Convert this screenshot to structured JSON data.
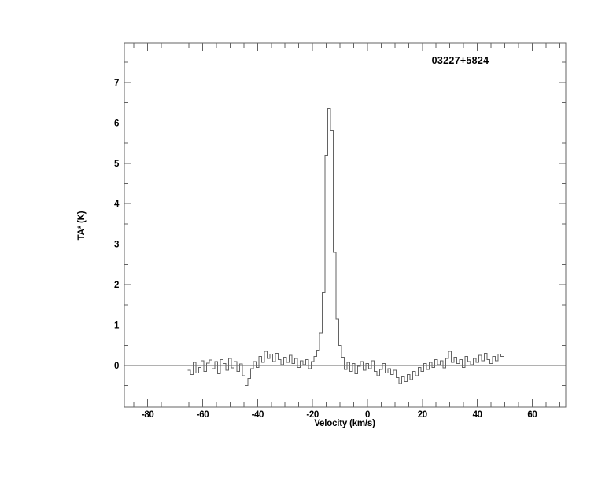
{
  "window": {
    "background": "#ffffff"
  },
  "chart_data": {
    "type": "line",
    "style": "histogram_step",
    "title": "03227+5824",
    "xlabel": "Velocity (km/s)",
    "ylabel": "TA* (K)",
    "xlim": [
      -88.5,
      72.2
    ],
    "ylim": [
      -1.03,
      7.97
    ],
    "x_major_ticks": [
      -80,
      -60,
      -40,
      -20,
      0,
      20,
      40,
      60
    ],
    "x_minor_step": 5,
    "y_major_ticks": [
      0,
      1,
      2,
      3,
      4,
      5,
      6,
      7
    ],
    "y_minor_step": 0.5,
    "grid": false,
    "zero_line": true,
    "legend": null,
    "colors": {
      "line": "#636363",
      "text": "#000000",
      "background": "#ffffff"
    },
    "peak": {
      "velocity_kms": -14,
      "peak_ta_k": 6.35
    },
    "channel_width_kms": 1,
    "points": {
      "x": [
        -65,
        -64,
        -63,
        -62,
        -61,
        -60,
        -59,
        -58,
        -57,
        -56,
        -55,
        -54,
        -53,
        -52,
        -51,
        -50,
        -49,
        -48,
        -47,
        -46,
        -45,
        -44,
        -43,
        -42,
        -41,
        -40,
        -39,
        -38,
        -37,
        -36,
        -35,
        -34,
        -33,
        -32,
        -31,
        -30,
        -29,
        -28,
        -27,
        -26,
        -25,
        -24,
        -23,
        -22,
        -21,
        -20,
        -19,
        -18,
        -17,
        -16,
        -15,
        -14,
        -13,
        -12,
        -11,
        -10,
        -9,
        -8,
        -7,
        -6,
        -5,
        -4,
        -3,
        -2,
        -1,
        0,
        1,
        2,
        3,
        4,
        5,
        6,
        7,
        8,
        9,
        10,
        11,
        12,
        13,
        14,
        15,
        16,
        17,
        18,
        19,
        20,
        21,
        22,
        23,
        24,
        25,
        26,
        27,
        28,
        29,
        30,
        31,
        32,
        33,
        34,
        35,
        36,
        37,
        38,
        39,
        40,
        41,
        42,
        43,
        44,
        45,
        46,
        47,
        48,
        49
      ],
      "y": [
        -0.12,
        -0.22,
        0.08,
        -0.18,
        -0.05,
        0.12,
        -0.15,
        0.06,
        0.14,
        -0.08,
        0.1,
        -0.2,
        0.15,
        0.05,
        -0.12,
        0.18,
        -0.06,
        0.1,
        -0.15,
        0.04,
        -0.25,
        -0.5,
        -0.32,
        -0.08,
        0.1,
        -0.05,
        0.22,
        0.08,
        0.35,
        0.18,
        0.28,
        0.1,
        0.3,
        0.15,
        0.02,
        0.2,
        0.08,
        0.25,
        0.05,
        0.18,
        -0.05,
        0.12,
        0.02,
        0.15,
        -0.08,
        0.1,
        0.22,
        0.38,
        0.8,
        1.8,
        5.2,
        6.35,
        5.8,
        2.8,
        1.15,
        0.5,
        0.2,
        -0.1,
        0.08,
        -0.15,
        0.05,
        -0.2,
        -0.02,
        0.1,
        -0.12,
        0.05,
        -0.08,
        0.12,
        -0.15,
        -0.25,
        -0.1,
        0.05,
        -0.18,
        -0.08,
        -0.22,
        -0.12,
        -0.3,
        -0.45,
        -0.28,
        -0.4,
        -0.22,
        -0.35,
        -0.15,
        -0.25,
        -0.05,
        -0.15,
        0.05,
        -0.1,
        0.08,
        -0.05,
        0.15,
        0.02,
        0.12,
        -0.06,
        0.18,
        0.35,
        0.08,
        0.2,
        0.05,
        0.15,
        -0.05,
        0.22,
        0.1,
        0.02,
        0.18,
        0.08,
        0.25,
        0.12,
        0.3,
        0.15,
        0.05,
        0.22,
        0.12,
        0.28,
        0.22
      ]
    }
  }
}
